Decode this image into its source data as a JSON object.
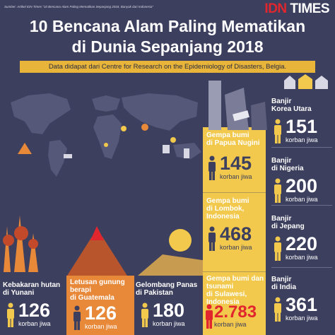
{
  "source": "Sumber: Artikel IDN Times \"10 Bencana Alam Paling Mematikan Sepanjang 2018, Banyak dari Indonesia\"",
  "brand": {
    "idn": "IDN",
    "times": " TIMES"
  },
  "title": {
    "line1": "10 Bencana Alam Paling Mematikan",
    "line2": "di Dunia Sepanjang 2018"
  },
  "subtitle": "Data didapat dari Centre for Research on the Epidemiology of Disasters, Belgia.",
  "unit": "korban jiwa",
  "colors": {
    "background": "#3d3f5e",
    "yellow": "#f2c94c",
    "orange": "#e8893a",
    "accent": "#e8b53a",
    "brand_red": "#e1262d"
  },
  "disasters": {
    "yunani": {
      "label1": "Kebakaran hutan",
      "label2": "di Yunani",
      "value": "126"
    },
    "guatemala": {
      "label1": "Letusan gunung",
      "label2": "berapi",
      "label3": "di Guatemala",
      "value": "126"
    },
    "pakistan": {
      "label1": "Gelombang Panas",
      "label2": "di Pakistan",
      "value": "180"
    },
    "papua": {
      "label1": "Gempa bumi",
      "label2": "di Papua Nugini",
      "value": "145"
    },
    "lombok": {
      "label1": "Gempa bumi",
      "label2": "di Lombok,",
      "label3": "Indonesia",
      "value": "468"
    },
    "sulawesi": {
      "label1": "Gempa bumi dan",
      "label2": "tsunami",
      "label3": "di Sulawesi,",
      "label4": "Indonesia",
      "value": "2.783"
    },
    "korea": {
      "label1": "Banjir",
      "label2": "Korea Utara",
      "value": "151"
    },
    "nigeria": {
      "label1": "Banjir",
      "label2": "di Nigeria",
      "value": "200"
    },
    "jepang": {
      "label1": "Banjir",
      "label2": "di Jepang",
      "value": "220"
    },
    "india": {
      "label1": "Banjir",
      "label2": "di India",
      "value": "361"
    }
  }
}
